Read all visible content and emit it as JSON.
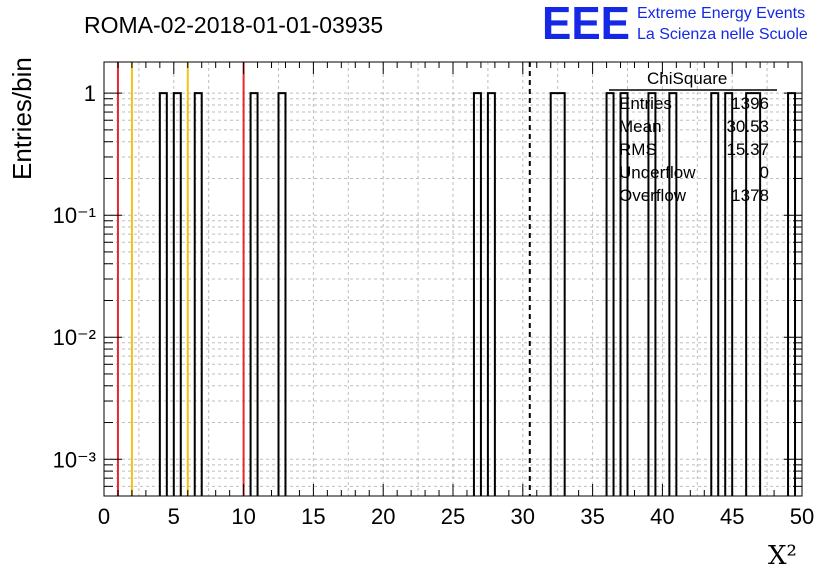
{
  "chart_data": {
    "type": "bar",
    "title": "ROMA-02-2018-01-01-03935",
    "xlabel": "X²",
    "ylabel": "Entries/bin",
    "xlim": [
      0,
      50
    ],
    "ylim": [
      0.0005,
      1.8
    ],
    "log_y": true,
    "grid": true,
    "x_ticks": [
      "0",
      "5",
      "10",
      "15",
      "20",
      "25",
      "30",
      "35",
      "40",
      "45",
      "50"
    ],
    "y_ticks": [
      {
        "value": 1,
        "label": "1"
      },
      {
        "value": 0.1,
        "label": "10⁻¹"
      },
      {
        "value": 0.01,
        "label": "10⁻²"
      },
      {
        "value": 0.001,
        "label": "10⁻³"
      }
    ],
    "bins": [
      {
        "x0": 4.0,
        "x1": 4.5,
        "count": 1
      },
      {
        "x0": 5.0,
        "x1": 5.5,
        "count": 1
      },
      {
        "x0": 6.5,
        "x1": 7.0,
        "count": 1
      },
      {
        "x0": 10.5,
        "x1": 11.0,
        "count": 1
      },
      {
        "x0": 12.5,
        "x1": 13.0,
        "count": 1
      },
      {
        "x0": 26.5,
        "x1": 27.0,
        "count": 1
      },
      {
        "x0": 27.5,
        "x1": 28.0,
        "count": 1
      },
      {
        "x0": 32.0,
        "x1": 33.0,
        "count": 1
      },
      {
        "x0": 36.0,
        "x1": 36.5,
        "count": 1
      },
      {
        "x0": 37.0,
        "x1": 37.5,
        "count": 1
      },
      {
        "x0": 39.0,
        "x1": 39.5,
        "count": 1
      },
      {
        "x0": 40.5,
        "x1": 41.0,
        "count": 1
      },
      {
        "x0": 43.5,
        "x1": 44.0,
        "count": 1
      },
      {
        "x0": 44.5,
        "x1": 45.0,
        "count": 1
      },
      {
        "x0": 46.0,
        "x1": 47.0,
        "count": 1
      },
      {
        "x0": 49.0,
        "x1": 49.5,
        "count": 1
      }
    ],
    "reference_lines": [
      {
        "x": 1,
        "color": "#e8282e",
        "style": "solid"
      },
      {
        "x": 2,
        "color": "#f2c21a",
        "style": "solid"
      },
      {
        "x": 6,
        "color": "#f2c21a",
        "style": "solid"
      },
      {
        "x": 10,
        "color": "#e8282e",
        "style": "solid"
      },
      {
        "x": 30.5,
        "color": "#000000",
        "style": "dashed"
      }
    ],
    "stats": {
      "name": "ChiSquare",
      "rows": [
        {
          "label": "Entries",
          "value": "1396"
        },
        {
          "label": "Mean",
          "value": "30.53"
        },
        {
          "label": "RMS",
          "value": "15.37"
        },
        {
          "label": "Underflow",
          "value": "0"
        },
        {
          "label": "Overflow",
          "value": "1378"
        }
      ]
    }
  },
  "logo": {
    "mark": "EEE",
    "line1": "Extreme Energy Events",
    "line2": "La Scienza nelle Scuole",
    "color": "#1428e6"
  }
}
